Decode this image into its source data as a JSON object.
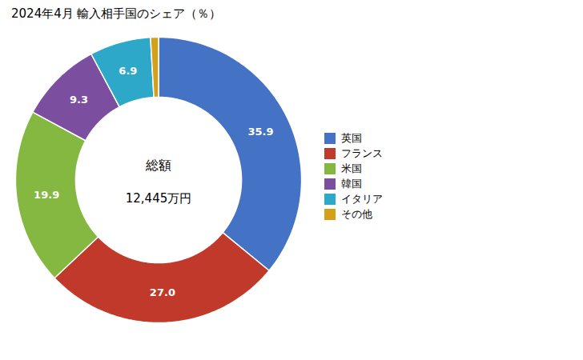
{
  "chart_data": {
    "type": "pie",
    "title": "2024年4月 輸入相手国のシェア（％）",
    "annotations": [
      "総額",
      "12,445万円"
    ],
    "categories": [
      "英国",
      "フランス",
      "米国",
      "韓国",
      "イタリア",
      "その他"
    ],
    "values": [
      35.9,
      27.0,
      19.9,
      9.3,
      6.9,
      0.9
    ],
    "value_labels": [
      "35.9",
      "27.0",
      "19.9",
      "9.3",
      "6.9",
      null
    ],
    "data_labels": true,
    "colors": [
      "#4472C4",
      "#C0392B",
      "#84B840",
      "#7B4EA0",
      "#2DA8C8",
      "#D4A017"
    ],
    "legend": "right"
  }
}
